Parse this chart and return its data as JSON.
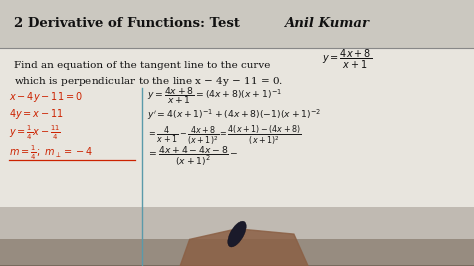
{
  "bg_color_top": "#d8d4cc",
  "bg_color_main": "#e8e5de",
  "bg_color_bottom": "#b0a898",
  "title_text": "2 Derivative of Functions: Test",
  "author_text": "Anil Kumar",
  "title_fontsize": 9.5,
  "body_fontsize": 7.5,
  "math_fontsize": 7.0,
  "small_fontsize": 6.5,
  "left_color": "#cc2200",
  "right_color": "#1a1a1a",
  "title_color": "#111111",
  "divider_color": "#5a9aaa",
  "line_color": "#999999"
}
